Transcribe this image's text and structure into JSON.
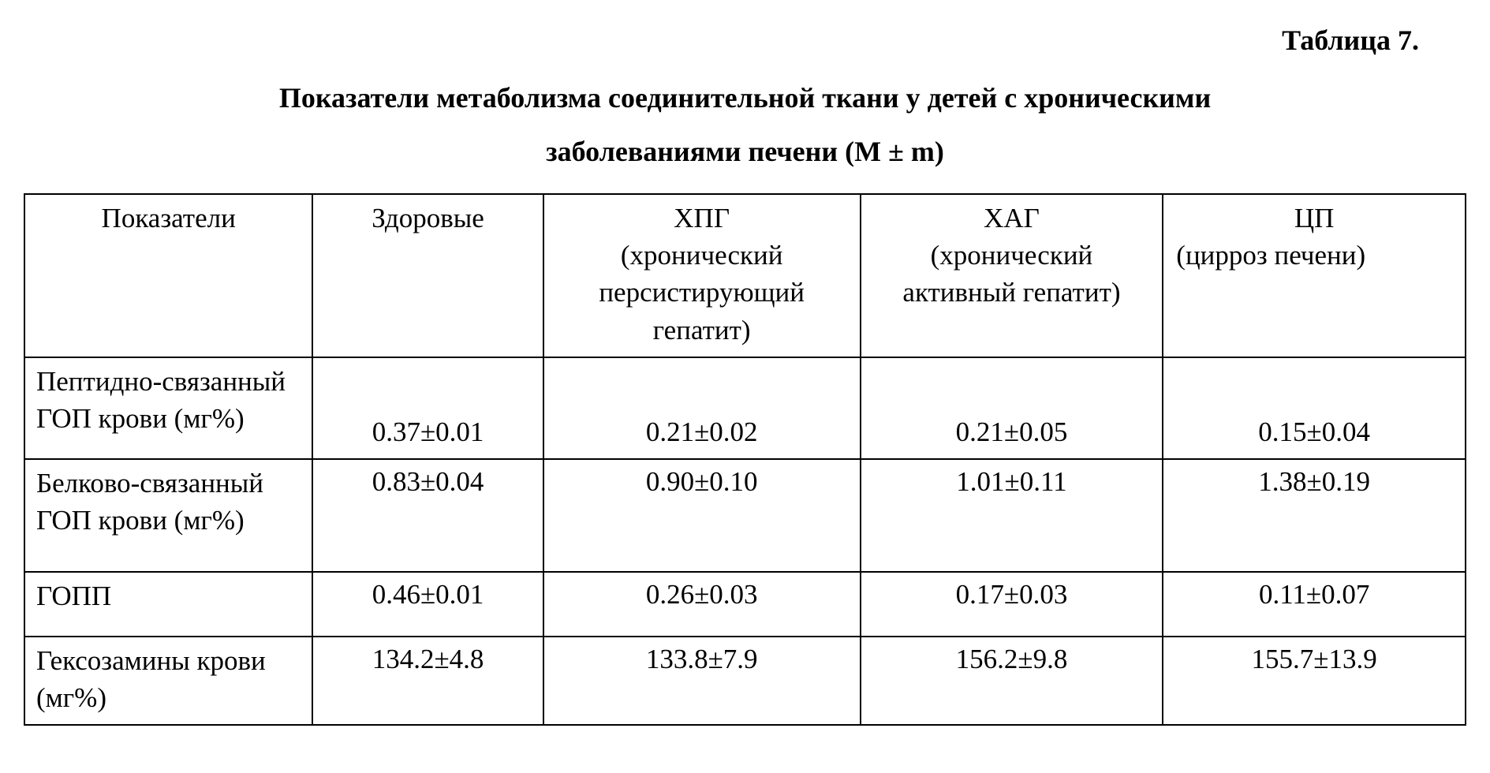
{
  "background_color": "#ffffff",
  "text_color": "#000000",
  "border_color": "#000000",
  "font_family": "Times New Roman",
  "base_fontsize_pt": 26,
  "table_number": "Таблица 7.",
  "title_line1": "Показатели метаболизма соединительной ткани у детей с хроническими",
  "title_line2": "заболеваниями печени (M ± m)",
  "table": {
    "type": "table",
    "column_widths_pct": [
      20,
      16,
      22,
      21,
      21
    ],
    "columns": [
      {
        "main": "Показатели",
        "sub": "",
        "align": "center",
        "sub_align": "center"
      },
      {
        "main": "Здоровые",
        "sub": "",
        "align": "center",
        "sub_align": "center"
      },
      {
        "main": "ХПГ",
        "sub": "(хронический персистирующий гепатит)",
        "align": "center",
        "sub_align": "center"
      },
      {
        "main": "ХАГ",
        "sub": "(хронический активный гепатит)",
        "align": "center",
        "sub_align": "center"
      },
      {
        "main": "ЦП",
        "sub": "(цирроз печени)",
        "align": "center",
        "sub_align": "left"
      }
    ],
    "rows": [
      {
        "label": "Пептидно-связанный ГОП крови (мг%)",
        "values": [
          "0.37±0.01",
          "0.21±0.02",
          "0.21±0.05",
          "0.15±0.04"
        ],
        "value_valign": "bottom"
      },
      {
        "label": "Белково-связанный ГОП крови (мг%)",
        "values": [
          "0.83±0.04",
          "0.90±0.10",
          "1.01±0.11",
          "1.38±0.19"
        ],
        "value_valign": "top"
      },
      {
        "label": "ГОПП",
        "values": [
          "0.46±0.01",
          "0.26±0.03",
          "0.17±0.03",
          "0.11±0.07"
        ],
        "value_valign": "top"
      },
      {
        "label": "Гексозамины крови (мг%)",
        "values": [
          "134.2±4.8",
          "133.8±7.9",
          "156.2±9.8",
          "155.7±13.9"
        ],
        "value_valign": "top"
      }
    ]
  }
}
